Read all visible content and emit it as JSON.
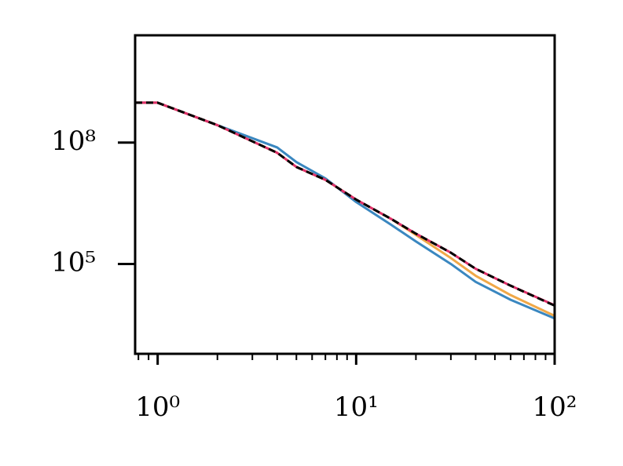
{
  "chart_data": {
    "type": "line",
    "xlog": true,
    "ylog": true,
    "xlim": [
      0.77,
      100
    ],
    "ylim": [
      600,
      45000000000
    ],
    "xticks": [
      {
        "value": 1,
        "label": "10⁰"
      },
      {
        "value": 10,
        "label": "10¹"
      },
      {
        "value": 100,
        "label": "10²"
      }
    ],
    "xminor_ticks": [
      0.8,
      0.9,
      2,
      3,
      4,
      5,
      6,
      7,
      8,
      9,
      20,
      30,
      40,
      50,
      60,
      70,
      80,
      90
    ],
    "yticks": [
      {
        "value": 100000,
        "label": "10⁵"
      },
      {
        "value": 100000000,
        "label": "10⁸"
      }
    ],
    "x": [
      0.77,
      1,
      2,
      4,
      5,
      7,
      10,
      15,
      20,
      30,
      40,
      60,
      100
    ],
    "series": [
      {
        "color": "#3a87c0",
        "values": [
          970000000,
          970000000,
          270000000,
          76000000,
          33000000,
          13000000,
          3400000,
          930000,
          360000,
          100000,
          36000,
          13000,
          4500
        ]
      },
      {
        "color": "#f0a848",
        "values": [
          970000000,
          970000000,
          270000000,
          56000000,
          25000000,
          12000000,
          3900000,
          1300000,
          520000,
          140000,
          51000,
          17000,
          5200
        ]
      },
      {
        "color": "#e0306a",
        "values": [
          970000000,
          970000000,
          270000000,
          56000000,
          25000000,
          12000000,
          3900000,
          1300000,
          560000,
          190000,
          76000,
          29000,
          9500
        ]
      },
      {
        "color": "#000000",
        "linestyle": "dashed",
        "values": [
          970000000,
          970000000,
          270000000,
          56000000,
          25000000,
          12000000,
          3900000,
          1300000,
          560000,
          190000,
          76000,
          29000,
          9300
        ]
      }
    ]
  }
}
